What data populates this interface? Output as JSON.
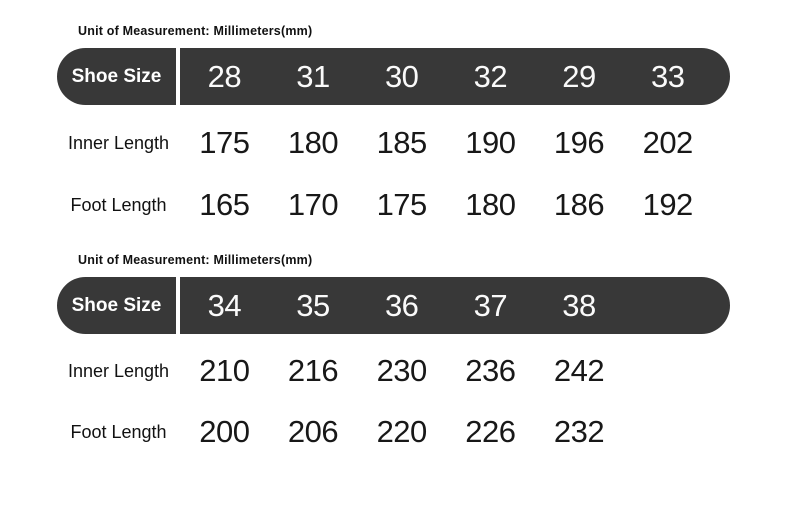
{
  "colors": {
    "background": "#ffffff",
    "pill_background": "#383838",
    "pill_text": "#ffffff",
    "body_text": "#181818"
  },
  "tables": [
    {
      "unit_label": "Unit of Measurement: Millimeters(mm)",
      "header_label": "Shoe Size",
      "sizes": [
        "28",
        "31",
        "30",
        "32",
        "29",
        "33"
      ],
      "rows": [
        {
          "label": "Inner Length",
          "values": [
            "175",
            "180",
            "185",
            "190",
            "196",
            "202"
          ]
        },
        {
          "label": "Foot Length",
          "values": [
            "165",
            "170",
            "175",
            "180",
            "186",
            "192"
          ]
        }
      ]
    },
    {
      "unit_label": "Unit of Measurement: Millimeters(mm)",
      "header_label": "Shoe Size",
      "sizes": [
        "34",
        "35",
        "36",
        "37",
        "38"
      ],
      "rows": [
        {
          "label": "Inner Length",
          "values": [
            "210",
            "216",
            "230",
            "236",
            "242"
          ]
        },
        {
          "label": "Foot Length",
          "values": [
            "200",
            "206",
            "220",
            "226",
            "232"
          ]
        }
      ]
    }
  ]
}
